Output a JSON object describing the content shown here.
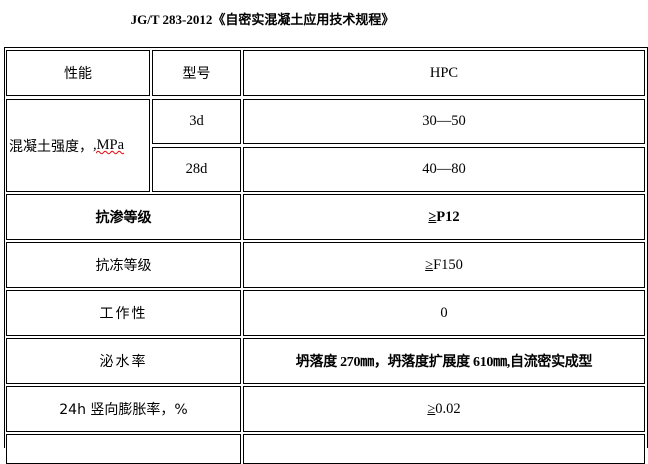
{
  "title": "JG/T 283-2012《自密实混凝土应用技术规程》",
  "header": {
    "col1": "性能",
    "col2": "型号",
    "col3": "HPC"
  },
  "strength": {
    "label_cn": "混凝土强度，",
    "label_unit": ",MPa",
    "rows": [
      {
        "age": "3d",
        "value": "30—50"
      },
      {
        "age": "28d",
        "value": "40—80"
      }
    ]
  },
  "rows": [
    {
      "label": "抗渗等级",
      "value_sym": "≥",
      "value": "P12"
    },
    {
      "label": "抗冻等级",
      "value_sym": "≥",
      "value": "F150"
    },
    {
      "label": "工作性",
      "value": "0"
    },
    {
      "label": "泌水率",
      "value": "坍落度 270㎜，坍落度扩展度 610㎜,自流密实成型"
    },
    {
      "label": "24h 竖向膨胀率，%",
      "value_sym": "≥",
      "value": "0.02"
    }
  ]
}
